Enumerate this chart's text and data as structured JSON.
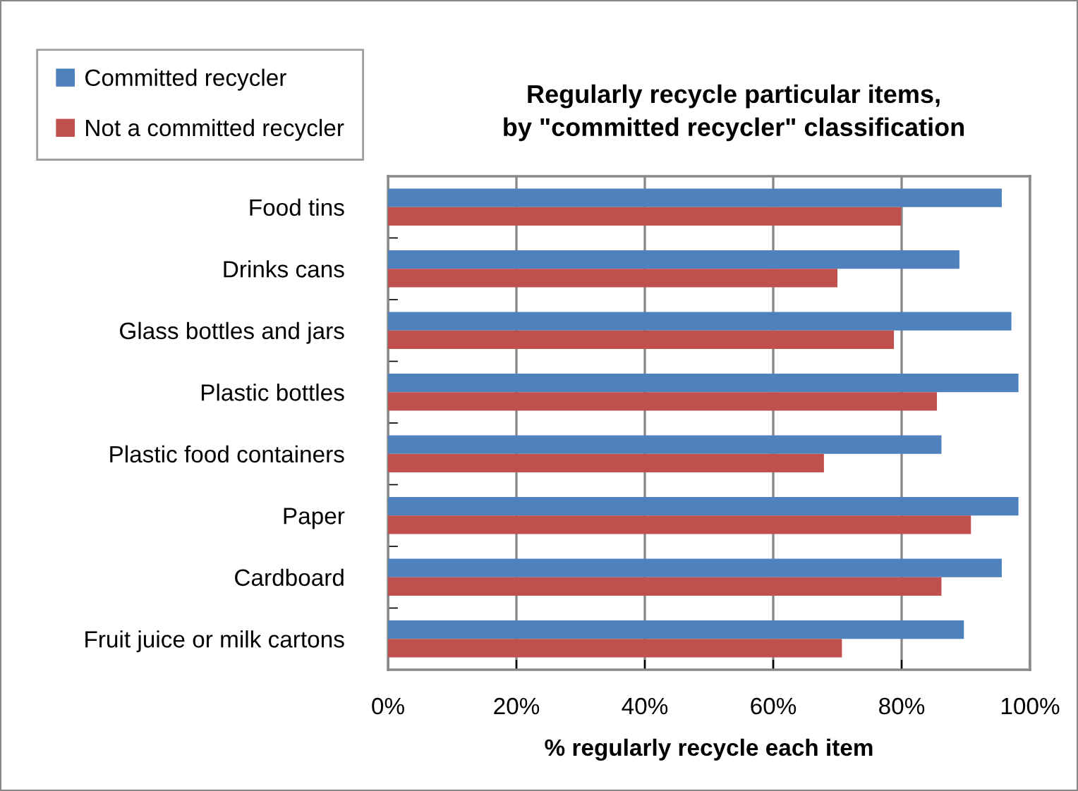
{
  "chart_data": {
    "type": "bar",
    "orientation": "horizontal",
    "title": "Regularly recycle particular items,\nby \"committed recycler\" classification",
    "xlabel": "% regularly recycle each item",
    "categories": [
      "Food tins",
      "Drinks cans",
      "Glass bottles and jars",
      "Plastic bottles",
      "Plastic food containers",
      "Paper",
      "Cardboard",
      "Fruit juice or milk cartons"
    ],
    "series": [
      {
        "name": "Committed recycler",
        "color": "#4f81bd",
        "values": [
          95.6,
          89.0,
          97.1,
          98.2,
          86.2,
          98.2,
          95.6,
          89.7
        ]
      },
      {
        "name": "Not a committed recycler",
        "color": "#c0504d",
        "values": [
          79.9,
          70.0,
          78.8,
          85.5,
          67.9,
          90.8,
          86.2,
          70.7
        ]
      }
    ],
    "xlim": [
      0,
      100
    ],
    "xticks": [
      {
        "value": 0,
        "label": "0%"
      },
      {
        "value": 20,
        "label": "20%"
      },
      {
        "value": 40,
        "label": "40%"
      },
      {
        "value": 60,
        "label": "60%"
      },
      {
        "value": 80,
        "label": "80%"
      },
      {
        "value": 100,
        "label": "100%"
      }
    ],
    "grid": "x",
    "legend": "top left"
  }
}
